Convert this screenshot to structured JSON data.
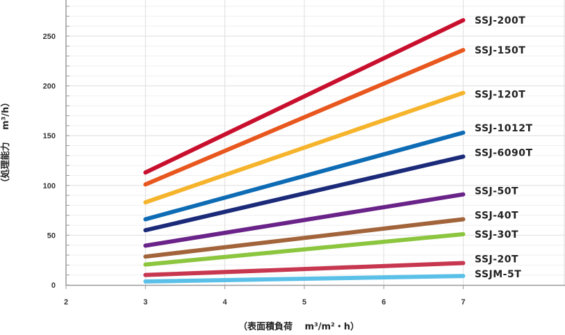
{
  "chart_data": {
    "type": "line",
    "xlabel": "（表面積負荷　 m³/m²・h）",
    "ylabel": "（処理能力　 m³/h）",
    "xlim": [
      2,
      8
    ],
    "ylim": [
      0,
      285
    ],
    "x_ticks": [
      "2",
      "3",
      "4",
      "5",
      "6",
      "7"
    ],
    "y_ticks": [
      "0",
      "50",
      "100",
      "150",
      "200",
      "250"
    ],
    "grid": true,
    "x": [
      3,
      7
    ],
    "series": [
      {
        "name": "SSJ-200T",
        "values": [
          113,
          266
        ],
        "color": "#c8102e"
      },
      {
        "name": "SSJ-150T",
        "values": [
          101,
          236
        ],
        "color": "#e8571e"
      },
      {
        "name": "SSJ-120T",
        "values": [
          83,
          193
        ],
        "color": "#f6b42d"
      },
      {
        "name": "SSJ-1012T",
        "values": [
          66,
          153
        ],
        "color": "#0e6cb5"
      },
      {
        "name": "SSJ-6090T",
        "values": [
          55,
          129
        ],
        "color": "#1b2b7a"
      },
      {
        "name": "SSJ-50T",
        "values": [
          39.5,
          91
        ],
        "color": "#6a2388"
      },
      {
        "name": "SSJ-40T",
        "values": [
          28.5,
          66
        ],
        "color": "#a2643a"
      },
      {
        "name": "SSJ-30T",
        "values": [
          20.5,
          51
        ],
        "color": "#8cc63f"
      },
      {
        "name": "SSJ-20T",
        "values": [
          10,
          22
        ],
        "color": "#c7374f"
      },
      {
        "name": "SSJM-5T",
        "values": [
          3.5,
          9
        ],
        "color": "#5bc0e8"
      }
    ]
  }
}
